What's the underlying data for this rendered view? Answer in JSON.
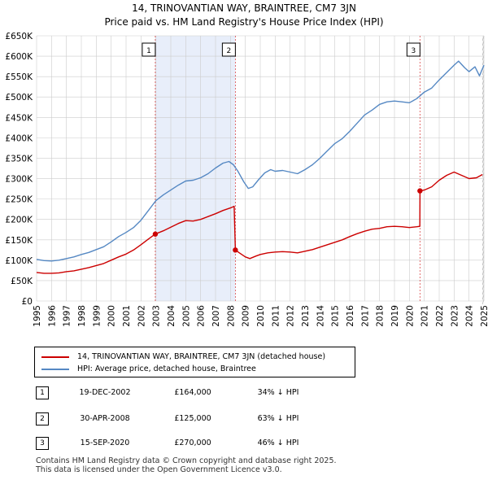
{
  "header": {
    "title_line1": "14, TRINOVANTIAN WAY, BRAINTREE, CM7 3JN",
    "title_line2": "Price paid vs. HM Land Registry's House Price Index (HPI)"
  },
  "colors": {
    "price_paid": "#cc0000",
    "hpi": "#5588c3",
    "shade": "#e8eefa",
    "grid": "#cccccc"
  },
  "chart_data": {
    "type": "line",
    "title": "Price paid vs. HM Land Registry's House Price Index (HPI)",
    "xlabel": "",
    "ylabel": "",
    "xlim": [
      1995,
      2025
    ],
    "ylim": [
      0,
      650000
    ],
    "x_ticks": [
      1995,
      1996,
      1997,
      1998,
      1999,
      2000,
      2001,
      2002,
      2003,
      2004,
      2005,
      2006,
      2007,
      2008,
      2009,
      2010,
      2011,
      2012,
      2013,
      2014,
      2015,
      2016,
      2017,
      2018,
      2019,
      2020,
      2021,
      2022,
      2023,
      2024,
      2025
    ],
    "x_tick_labels": [
      "1995",
      "1996",
      "1997",
      "1998",
      "1999",
      "2000",
      "2001",
      "2002",
      "2003",
      "2004",
      "2005",
      "2006",
      "2007",
      "2008",
      "2009",
      "2010",
      "2011",
      "2012",
      "2013",
      "2014",
      "2015",
      "2016",
      "2017",
      "2018",
      "2019",
      "2020",
      "2021",
      "2022",
      "2023",
      "2024",
      "2025"
    ],
    "y_ticks": [
      0,
      50000,
      100000,
      150000,
      200000,
      250000,
      300000,
      350000,
      400000,
      450000,
      500000,
      550000,
      600000,
      650000
    ],
    "y_tick_labels": [
      "£0",
      "£50K",
      "£100K",
      "£150K",
      "£200K",
      "£250K",
      "£300K",
      "£350K",
      "£400K",
      "£450K",
      "£500K",
      "£550K",
      "£600K",
      "£650K"
    ],
    "grid": true,
    "series": [
      {
        "name": "14, TRINOVANTIAN WAY, BRAINTREE, CM7 3JN (detached house)",
        "color": "#cc0000",
        "x": [
          1995.0,
          1995.5,
          1996.0,
          1996.5,
          1997.0,
          1997.5,
          1998.0,
          1998.5,
          1999.0,
          1999.5,
          2000.0,
          2000.5,
          2001.0,
          2001.5,
          2002.0,
          2002.5,
          2002.96,
          2003.5,
          2004.0,
          2004.5,
          2005.0,
          2005.5,
          2006.0,
          2006.5,
          2007.0,
          2007.5,
          2008.0,
          2008.25,
          2008.33,
          2008.6,
          2009.0,
          2009.3,
          2009.7,
          2010.0,
          2010.5,
          2011.0,
          2011.5,
          2012.0,
          2012.5,
          2013.0,
          2013.5,
          2014.0,
          2014.5,
          2015.0,
          2015.5,
          2016.0,
          2016.5,
          2017.0,
          2017.5,
          2018.0,
          2018.5,
          2019.0,
          2019.5,
          2020.0,
          2020.5,
          2020.7,
          2020.71,
          2021.0,
          2021.5,
          2022.0,
          2022.5,
          2023.0,
          2023.5,
          2024.0,
          2024.5,
          2024.9
        ],
        "values": [
          70000,
          68000,
          68000,
          69000,
          72000,
          74000,
          78000,
          82000,
          87000,
          92000,
          100000,
          108000,
          115000,
          125000,
          138000,
          152000,
          164000,
          172000,
          181000,
          190000,
          197000,
          196000,
          200000,
          207000,
          214000,
          222000,
          228000,
          232000,
          125000,
          118000,
          108000,
          104000,
          110000,
          114000,
          118000,
          120000,
          121000,
          120000,
          118000,
          122000,
          126000,
          132000,
          138000,
          144000,
          150000,
          158000,
          165000,
          171000,
          176000,
          178000,
          182000,
          183000,
          182000,
          180000,
          182000,
          183000,
          270000,
          272000,
          280000,
          296000,
          308000,
          316000,
          308000,
          300000,
          302000,
          310000
        ]
      },
      {
        "name": "HPI: Average price, detached house, Braintree",
        "color": "#5588c3",
        "x": [
          1995.0,
          1995.5,
          1996.0,
          1996.5,
          1997.0,
          1997.5,
          1998.0,
          1998.5,
          1999.0,
          1999.5,
          2000.0,
          2000.5,
          2001.0,
          2001.5,
          2002.0,
          2002.5,
          2003.0,
          2003.5,
          2004.0,
          2004.5,
          2005.0,
          2005.5,
          2006.0,
          2006.5,
          2007.0,
          2007.5,
          2007.9,
          2008.2,
          2008.5,
          2008.9,
          2009.2,
          2009.5,
          2009.9,
          2010.3,
          2010.7,
          2011.0,
          2011.5,
          2012.0,
          2012.5,
          2013.0,
          2013.5,
          2014.0,
          2014.5,
          2015.0,
          2015.5,
          2016.0,
          2016.5,
          2017.0,
          2017.5,
          2018.0,
          2018.5,
          2019.0,
          2019.5,
          2020.0,
          2020.5,
          2021.0,
          2021.5,
          2022.0,
          2022.5,
          2023.0,
          2023.3,
          2023.7,
          2024.0,
          2024.4,
          2024.7,
          2025.0
        ],
        "values": [
          102000,
          99000,
          98000,
          100000,
          104000,
          108000,
          114000,
          119000,
          126000,
          133000,
          145000,
          158000,
          168000,
          180000,
          198000,
          222000,
          246000,
          260000,
          272000,
          284000,
          294000,
          296000,
          302000,
          312000,
          326000,
          338000,
          342000,
          334000,
          318000,
          292000,
          276000,
          280000,
          298000,
          314000,
          322000,
          318000,
          320000,
          316000,
          312000,
          322000,
          334000,
          350000,
          368000,
          386000,
          398000,
          416000,
          436000,
          456000,
          468000,
          482000,
          488000,
          490000,
          488000,
          486000,
          496000,
          512000,
          522000,
          542000,
          560000,
          578000,
          588000,
          572000,
          562000,
          574000,
          552000,
          578000
        ]
      }
    ],
    "markers": [
      {
        "label": "1",
        "x": 2002.96,
        "y": 164000
      },
      {
        "label": "2",
        "x": 2008.33,
        "y": 125000
      },
      {
        "label": "3",
        "x": 2020.71,
        "y": 270000
      }
    ],
    "shaded_ranges": [
      [
        2002.96,
        2008.33
      ]
    ],
    "hatched_range": [
      2024.9,
      2025.0
    ]
  },
  "legend": {
    "price_paid_label": "14, TRINOVANTIAN WAY, BRAINTREE, CM7 3JN (detached house)",
    "hpi_label": "HPI: Average price, detached house, Braintree"
  },
  "transactions": [
    {
      "num": "1",
      "date": "19-DEC-2002",
      "price": "£164,000",
      "hpi": "34% ↓ HPI"
    },
    {
      "num": "2",
      "date": "30-APR-2008",
      "price": "£125,000",
      "hpi": "63% ↓ HPI"
    },
    {
      "num": "3",
      "date": "15-SEP-2020",
      "price": "£270,000",
      "hpi": "46% ↓ HPI"
    }
  ],
  "footer": {
    "line1": "Contains HM Land Registry data © Crown copyright and database right 2025.",
    "line2": "This data is licensed under the Open Government Licence v3.0."
  }
}
